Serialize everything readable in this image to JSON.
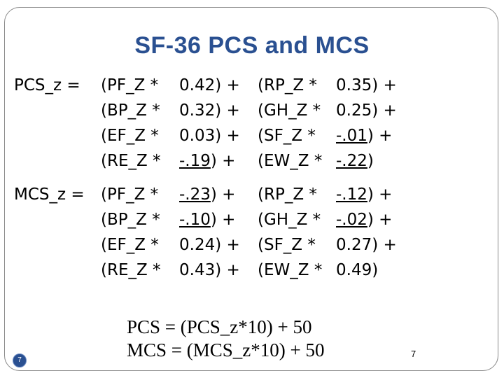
{
  "title": "SF-36 PCS and MCS",
  "pcs_label": "PCS_z =",
  "mcs_label": "MCS_z =",
  "pcs_rows": [
    {
      "t1": "(PF_Z *",
      "w1": "0.42",
      "u1": false,
      "s1": ") +",
      "t2": "(RP_Z *",
      "w2": "0.35",
      "u2": false,
      "s2": ") +"
    },
    {
      "t1": "(BP_Z *",
      "w1": "0.32",
      "u1": false,
      "s1": ") +",
      "t2": "(GH_Z *",
      "w2": "0.25",
      "u2": false,
      "s2": ") +"
    },
    {
      "t1": "(EF_Z *",
      "w1": "0.03",
      "u1": false,
      "s1": ") +",
      "t2": "(SF_Z *",
      "w2": "-.01",
      "u2": true,
      "s2": ") +"
    },
    {
      "t1": "(RE_Z *",
      "w1": "-.19",
      "u1": true,
      "s1": ") +",
      "t2": "(EW_Z *",
      "w2": "-.22",
      "u2": true,
      "s2": ")"
    }
  ],
  "mcs_rows": [
    {
      "t1": "(PF_Z *",
      "w1": "-.23",
      "u1": true,
      "s1": ") +",
      "t2": "(RP_Z *",
      "w2": "-.12",
      "u2": true,
      "s2": ") +"
    },
    {
      "t1": "(BP_Z *",
      "w1": "-.10",
      "u1": true,
      "s1": ") +",
      "t2": "(GH_Z *",
      "w2": "-.02",
      "u2": true,
      "s2": ") +"
    },
    {
      "t1": "(EF_Z *",
      "w1": "0.24",
      "u1": false,
      "s1": ") +",
      "t2": "(SF_Z *",
      "w2": "0.27",
      "u2": false,
      "s2": ") +"
    },
    {
      "t1": "(RE_Z *",
      "w1": "0.43",
      "u1": false,
      "s1": ") +",
      "t2": "(EW_Z *",
      "w2": "0.49",
      "u2": false,
      "s2": ")"
    }
  ],
  "formula_pcs": "PCS = (PCS_z*10) + 50",
  "formula_mcs": "MCS = (MCS_z*10) + 50",
  "badge_number": "7",
  "page_number": "7",
  "colors": {
    "title": "#2a5091",
    "badge": "#2a5091"
  }
}
